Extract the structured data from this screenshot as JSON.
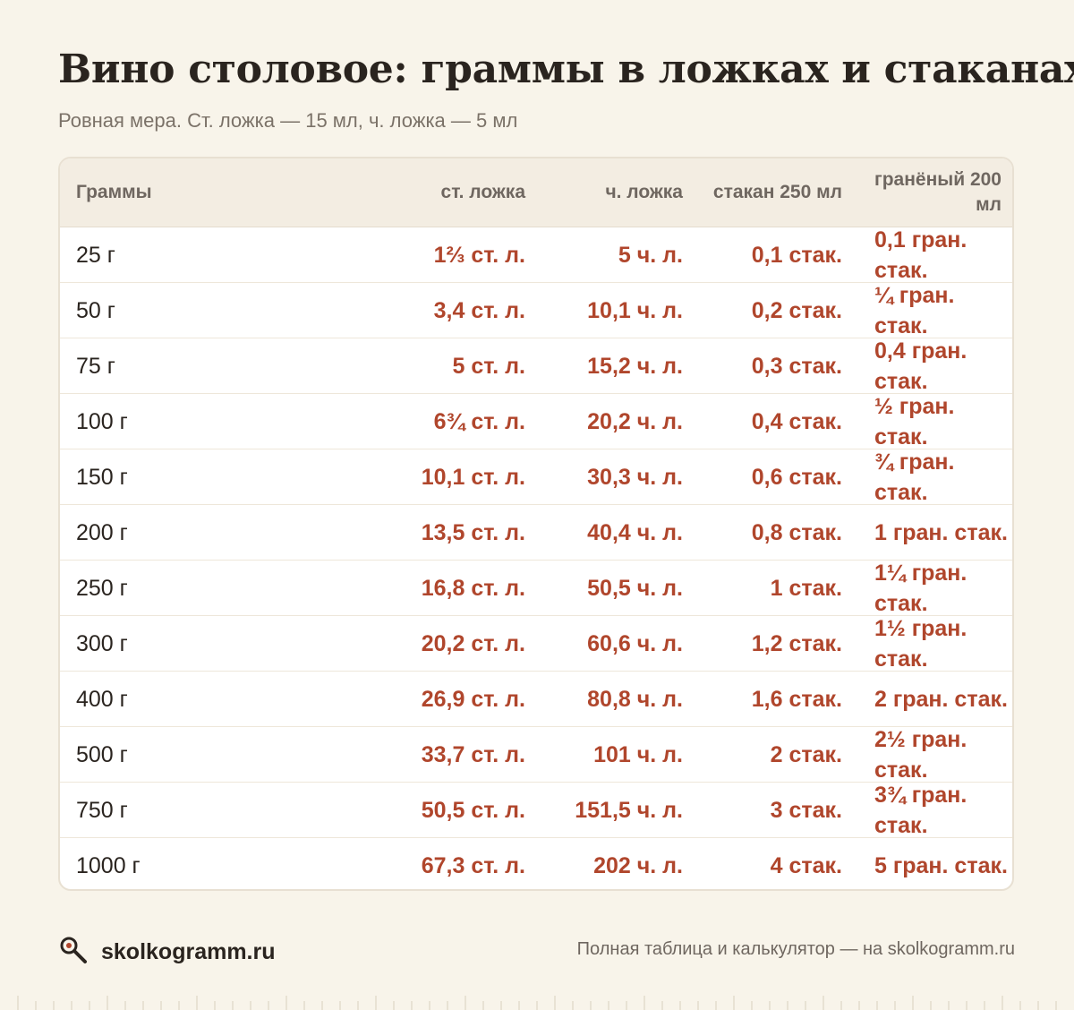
{
  "title": "Вино столовое: граммы в ложках и стаканах",
  "subtitle": "Ровная мера. Ст. ложка — 15 мл, ч. ложка — 5 мл",
  "table": {
    "headers": [
      "Граммы",
      "ст. ложка",
      "ч. ложка",
      "стакан 250 мл",
      "гранёный 200 мл"
    ],
    "rows": [
      [
        "25 г",
        "1⅔ ст. л.",
        "5 ч. л.",
        "0,1 стак.",
        "0,1 гран. стак."
      ],
      [
        "50 г",
        "3,4 ст. л.",
        "10,1 ч. л.",
        "0,2 стак.",
        "¼ гран. стак."
      ],
      [
        "75 г",
        "5 ст. л.",
        "15,2 ч. л.",
        "0,3 стак.",
        "0,4 гран. стак."
      ],
      [
        "100 г",
        "6¾ ст. л.",
        "20,2 ч. л.",
        "0,4 стак.",
        "½ гран. стак."
      ],
      [
        "150 г",
        "10,1 ст. л.",
        "30,3 ч. л.",
        "0,6 стак.",
        "¾ гран. стак."
      ],
      [
        "200 г",
        "13,5 ст. л.",
        "40,4 ч. л.",
        "0,8 стак.",
        "1 гран. стак."
      ],
      [
        "250 г",
        "16,8 ст. л.",
        "50,5 ч. л.",
        "1 стак.",
        "1¼ гран. стак."
      ],
      [
        "300 г",
        "20,2 ст. л.",
        "60,6 ч. л.",
        "1,2 стак.",
        "1½ гран. стак."
      ],
      [
        "400 г",
        "26,9 ст. л.",
        "80,8 ч. л.",
        "1,6 стак.",
        "2 гран. стак."
      ],
      [
        "500 г",
        "33,7 ст. л.",
        "101 ч. л.",
        "2 стак.",
        "2½ гран. стак."
      ],
      [
        "750 г",
        "50,5 ст. л.",
        "151,5 ч. л.",
        "3 стак.",
        "3¾ гран. стак."
      ],
      [
        "1000 г",
        "67,3 ст. л.",
        "202 ч. л.",
        "4 стак.",
        "5 гран. стак."
      ]
    ]
  },
  "footer": {
    "brand": "skolkogramm.ru",
    "brand_icon": "magnifier-icon",
    "note": "Полная таблица и калькулятор — на skolkogramm.ru"
  },
  "colors": {
    "background": "#f8f4ea",
    "accent": "#b0462c",
    "text": "#2a241f",
    "muted": "#7b7268"
  }
}
